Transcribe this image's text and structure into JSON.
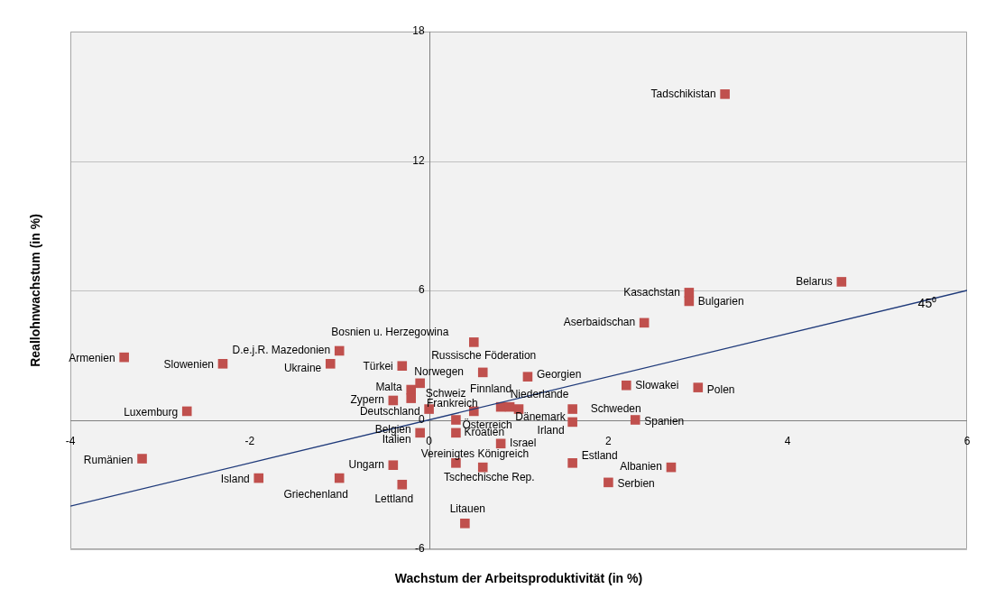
{
  "chart_data": {
    "type": "scatter",
    "xlabel": "Wachstum der Arbeitsproduktivität (in %)",
    "ylabel": "Reallohnwachstum (in %)",
    "xlim": [
      -4,
      6
    ],
    "xticks": [
      -4,
      -2,
      0,
      2,
      4,
      6
    ],
    "ylim": [
      -6,
      18
    ],
    "yticks": [
      -6,
      0,
      6,
      12,
      18
    ],
    "grid": "y",
    "legend": false,
    "marker": "square",
    "series": [
      {
        "type": "scatter",
        "color": "#c0504d",
        "x": [
          3.3,
          4.6,
          2.9,
          2.9,
          2.4,
          0.5,
          0.6,
          -0.1,
          1.1,
          -1.0,
          -3.4,
          -2.3,
          -1.1,
          -0.3,
          -0.2,
          -0.2,
          -0.4,
          0.0,
          0.5,
          0.8,
          0.9,
          1.0,
          0.3,
          0.3,
          0.8,
          0.3,
          0.6,
          0.4,
          -0.1,
          null,
          -0.4,
          -0.3,
          -1.0,
          -1.9,
          -3.2,
          -2.7,
          1.6,
          1.6,
          2.3,
          1.6,
          2.7,
          2.0,
          2.2,
          3.0
        ],
        "values": [
          15.1,
          6.4,
          5.9,
          5.5,
          4.5,
          3.6,
          2.2,
          1.7,
          2.0,
          3.2,
          2.9,
          2.6,
          2.6,
          2.5,
          1.4,
          1.0,
          0.9,
          0.5,
          0.4,
          0.6,
          0.6,
          0.5,
          0.0,
          -0.6,
          -1.1,
          -2.0,
          -2.2,
          -4.8,
          -0.6,
          null,
          -2.1,
          -3.0,
          -2.7,
          -2.7,
          -1.8,
          0.4,
          0.5,
          -0.1,
          0.0,
          -2.0,
          -2.2,
          -2.9,
          1.6,
          1.5
        ]
      },
      {
        "type": "line",
        "color": "#1f3a7a",
        "marker": "none",
        "x": [
          -4,
          6
        ],
        "values": [
          -4,
          6
        ]
      }
    ],
    "annotations": [
      {
        "text": "Tadschikistan",
        "x": 3.3,
        "y": 15.1
      },
      {
        "text": "Belarus",
        "x": 4.6,
        "y": 6.4
      },
      {
        "text": "Kasachstan",
        "x": 2.9,
        "y": 5.9
      },
      {
        "text": "Bulgarien",
        "x": 2.9,
        "y": 5.5
      },
      {
        "text": "Aserbaidschan",
        "x": 2.4,
        "y": 4.5
      },
      {
        "text": "Bosnien u. Herzegowina",
        "x": 0.5,
        "y": 3.6
      },
      {
        "text": "Russische Föderation",
        "x": 0.6,
        "y": 2.2
      },
      {
        "text": "Norwegen",
        "x": -0.1,
        "y": 1.7
      },
      {
        "text": "Georgien",
        "x": 1.1,
        "y": 2.0
      },
      {
        "text": "D.e.j.R. Mazedonien",
        "x": -1.0,
        "y": 3.2
      },
      {
        "text": "Armenien",
        "x": -3.4,
        "y": 2.9
      },
      {
        "text": "Slowenien",
        "x": -2.3,
        "y": 2.6
      },
      {
        "text": "Ukraine",
        "x": -1.1,
        "y": 2.6
      },
      {
        "text": "Türkei",
        "x": -0.3,
        "y": 2.5
      },
      {
        "text": "Malta",
        "x": -0.2,
        "y": 1.4
      },
      {
        "text": "Schweiz",
        "x": -0.2,
        "y": 1.0
      },
      {
        "text": "Zypern",
        "x": -0.4,
        "y": 0.9
      },
      {
        "text": "Deutschland",
        "x": 0.0,
        "y": 0.5
      },
      {
        "text": "Frankreich",
        "x": 0.5,
        "y": 0.4
      },
      {
        "text": "Finnland",
        "x": 0.8,
        "y": 0.6
      },
      {
        "text": "Niederlande",
        "x": 0.9,
        "y": 0.6
      },
      {
        "text": "Dänemark",
        "x": 1.0,
        "y": 0.5
      },
      {
        "text": "Österreich",
        "x": 0.3,
        "y": 0.0
      },
      {
        "text": "Kroatien",
        "x": 0.3,
        "y": -0.6
      },
      {
        "text": "Israel",
        "x": 0.8,
        "y": -1.1
      },
      {
        "text": "Vereinigtes Königreich",
        "x": 0.3,
        "y": -2.0
      },
      {
        "text": "Tschechische Rep.",
        "x": 0.6,
        "y": -2.2
      },
      {
        "text": "Litauen",
        "x": 0.4,
        "y": -4.8
      },
      {
        "text": "Italien",
        "x": -0.1,
        "y": -0.6
      },
      {
        "text": "Belgien",
        "x": -0.1,
        "y": -0.5
      },
      {
        "text": "Ungarn",
        "x": -0.4,
        "y": -2.1
      },
      {
        "text": "Lettland",
        "x": -0.3,
        "y": -3.0
      },
      {
        "text": "Griechenland",
        "x": -1.0,
        "y": -2.7
      },
      {
        "text": "Island",
        "x": -1.9,
        "y": -2.7
      },
      {
        "text": "Rumänien",
        "x": -3.2,
        "y": -1.8
      },
      {
        "text": "Luxemburg",
        "x": -2.7,
        "y": 0.4
      },
      {
        "text": "Schweden",
        "x": 1.6,
        "y": 0.5
      },
      {
        "text": "Irland",
        "x": 1.6,
        "y": -0.1
      },
      {
        "text": "Spanien",
        "x": 2.3,
        "y": 0.0
      },
      {
        "text": "Estland",
        "x": 1.6,
        "y": -2.0
      },
      {
        "text": "Albanien",
        "x": 2.7,
        "y": -2.2
      },
      {
        "text": "Serbien",
        "x": 2.0,
        "y": -2.9
      },
      {
        "text": "Slowakei",
        "x": 2.2,
        "y": 1.6
      },
      {
        "text": "Polen",
        "x": 3.0,
        "y": 1.5
      },
      {
        "text": "45⁰",
        "x": 5.7,
        "y": 5.7
      }
    ]
  }
}
